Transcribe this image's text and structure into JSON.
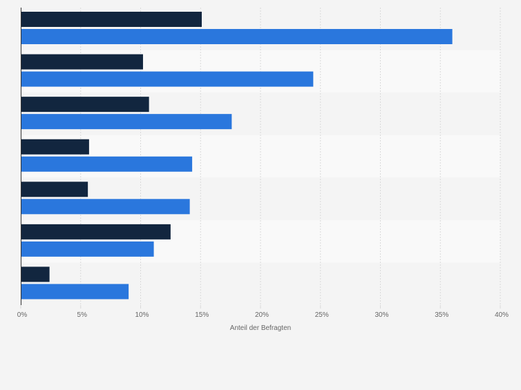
{
  "colors": {
    "background": "#f4f4f4",
    "band_light": "#f9f9f9",
    "band_dark": "#f4f4f4",
    "grid": "#d9d9d9",
    "axis": "#333333",
    "tick_text": "#666666",
    "series_1": "#12263f",
    "series_2": "#2a77dd"
  },
  "chart_data": {
    "type": "bar",
    "orientation": "horizontal",
    "xlabel": "Anteil der Befragten",
    "xlim": [
      0,
      40
    ],
    "xticks": [
      0,
      5,
      10,
      15,
      20,
      25,
      30,
      35,
      40
    ],
    "xtick_labels": [
      "0%",
      "5%",
      "10%",
      "15%",
      "20%",
      "25%",
      "30%",
      "35%",
      "40%"
    ],
    "grid": true,
    "categories": [
      "",
      "",
      "",
      "",
      "",
      "",
      ""
    ],
    "series": [
      {
        "values": [
          15.1,
          10.2,
          10.7,
          5.7,
          5.6,
          12.5,
          2.4
        ]
      },
      {
        "values": [
          36.0,
          24.4,
          17.6,
          14.3,
          14.1,
          11.1,
          9.0
        ]
      }
    ]
  }
}
